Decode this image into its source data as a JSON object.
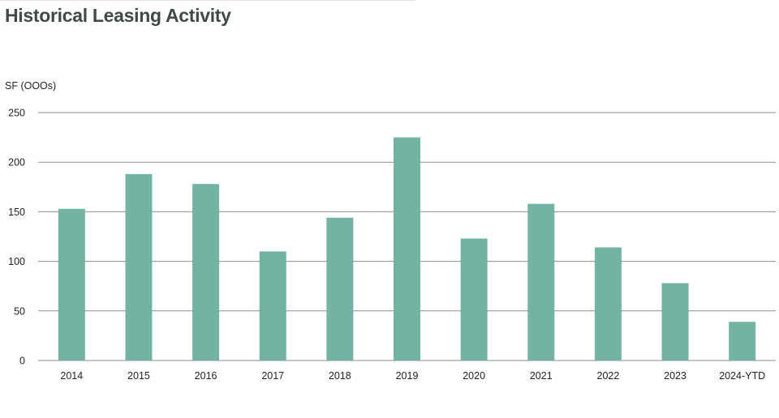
{
  "title": "Historical Leasing Activity",
  "chart_data": {
    "type": "bar",
    "title": "Historical Leasing Activity",
    "ylabel": "SF (OOOs)",
    "xlabel": "",
    "categories": [
      "2014",
      "2015",
      "2016",
      "2017",
      "2018",
      "2019",
      "2020",
      "2021",
      "2022",
      "2023",
      "2024-YTD"
    ],
    "values": [
      153,
      188,
      178,
      110,
      144,
      225,
      123,
      158,
      114,
      78,
      39
    ],
    "ylim": [
      0,
      250
    ],
    "yticks": [
      0,
      50,
      100,
      150,
      200,
      250
    ],
    "grid": true,
    "legend": "none",
    "bar_color": "#72b3a3",
    "grid_color": "#8c8c8c"
  }
}
